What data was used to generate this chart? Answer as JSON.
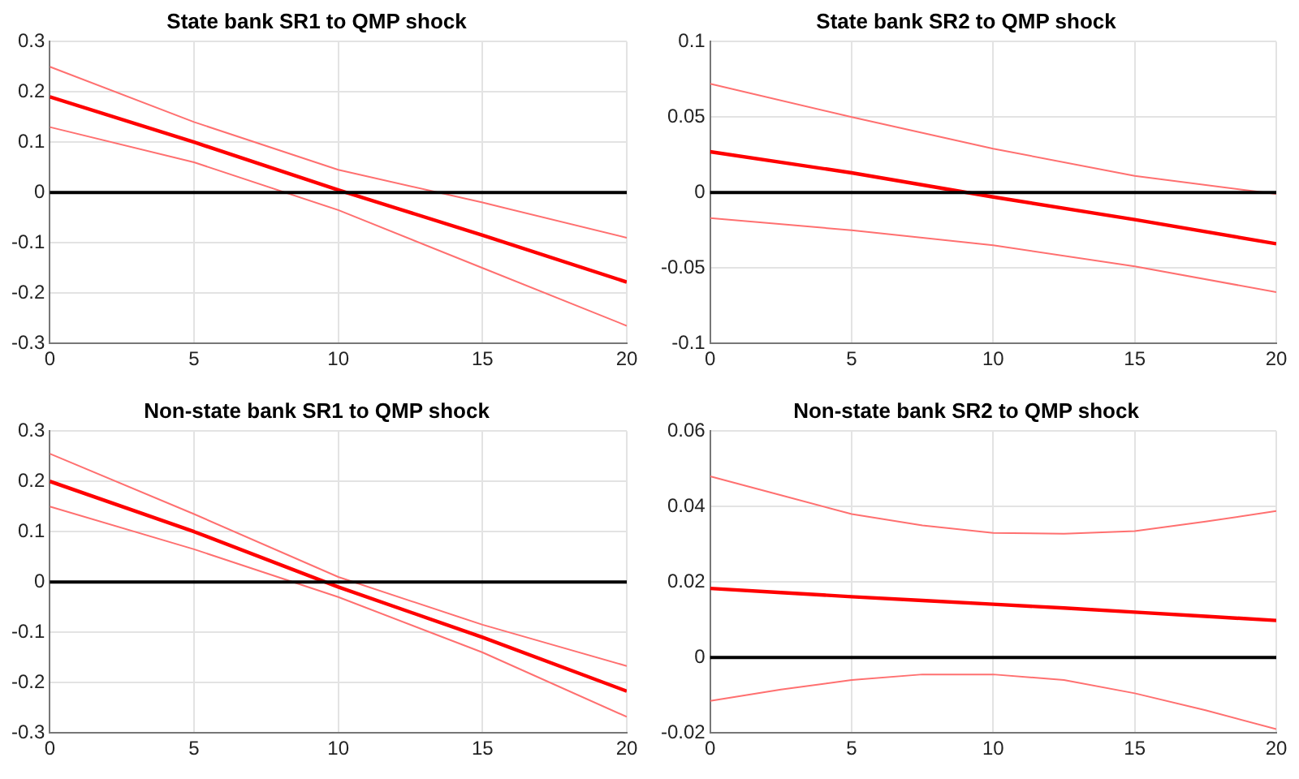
{
  "chart_data": [
    {
      "type": "line",
      "title": "State bank SR1 to QMP shock",
      "x": [
        0,
        5,
        10,
        15,
        20
      ],
      "xlim": [
        0,
        20
      ],
      "xticks": [
        0,
        5,
        10,
        15,
        20
      ],
      "ylim": [
        -0.3,
        0.3
      ],
      "yticks": [
        -0.3,
        -0.2,
        -0.1,
        0,
        0.1,
        0.2,
        0.3
      ],
      "grid": true,
      "legend": false,
      "marker": "none",
      "line_style": "solid",
      "ref_lines": [
        {
          "axis": "y",
          "value": 0,
          "color": "#000000"
        }
      ],
      "series": [
        {
          "color": "#ff0000",
          "values": [
            0.19,
            0.1,
            0.005,
            -0.085,
            -0.178
          ]
        },
        {
          "color": "#ff7070",
          "values": [
            0.25,
            0.14,
            0.045,
            -0.02,
            -0.09
          ]
        },
        {
          "color": "#ff7070",
          "values": [
            0.13,
            0.06,
            -0.035,
            -0.15,
            -0.265
          ]
        }
      ]
    },
    {
      "type": "line",
      "title": "State bank SR2 to QMP shock",
      "x": [
        0,
        5,
        10,
        15,
        20
      ],
      "xlim": [
        0,
        20
      ],
      "xticks": [
        0,
        5,
        10,
        15,
        20
      ],
      "ylim": [
        -0.1,
        0.1
      ],
      "yticks": [
        -0.1,
        -0.05,
        0,
        0.05,
        0.1
      ],
      "grid": true,
      "legend": false,
      "marker": "none",
      "line_style": "solid",
      "ref_lines": [
        {
          "axis": "y",
          "value": 0,
          "color": "#000000"
        }
      ],
      "series": [
        {
          "color": "#ff0000",
          "values": [
            0.027,
            0.013,
            -0.003,
            -0.018,
            -0.034
          ]
        },
        {
          "color": "#ff7070",
          "values": [
            0.072,
            0.05,
            0.029,
            0.011,
            -0.001
          ]
        },
        {
          "color": "#ff7070",
          "values": [
            -0.017,
            -0.025,
            -0.035,
            -0.049,
            -0.066
          ]
        }
      ]
    },
    {
      "type": "line",
      "title": "Non-state bank SR1 to QMP shock",
      "x": [
        0,
        5,
        10,
        15,
        20
      ],
      "xlim": [
        0,
        20
      ],
      "xticks": [
        0,
        5,
        10,
        15,
        20
      ],
      "ylim": [
        -0.3,
        0.3
      ],
      "yticks": [
        -0.3,
        -0.2,
        -0.1,
        0,
        0.1,
        0.2,
        0.3
      ],
      "grid": true,
      "legend": false,
      "marker": "none",
      "line_style": "solid",
      "ref_lines": [
        {
          "axis": "y",
          "value": 0,
          "color": "#000000"
        }
      ],
      "series": [
        {
          "color": "#ff0000",
          "values": [
            0.2,
            0.1,
            -0.01,
            -0.11,
            -0.217
          ]
        },
        {
          "color": "#ff7070",
          "values": [
            0.255,
            0.135,
            0.01,
            -0.085,
            -0.167
          ]
        },
        {
          "color": "#ff7070",
          "values": [
            0.15,
            0.065,
            -0.03,
            -0.14,
            -0.268
          ]
        }
      ]
    },
    {
      "type": "line",
      "title": "Non-state bank SR2 to QMP shock",
      "x": [
        0,
        2.5,
        5,
        7.5,
        10,
        12.5,
        15,
        17.5,
        20
      ],
      "xlim": [
        0,
        20
      ],
      "xticks": [
        0,
        5,
        10,
        15,
        20
      ],
      "ylim": [
        -0.02,
        0.06
      ],
      "yticks": [
        -0.02,
        0,
        0.02,
        0.04,
        0.06
      ],
      "grid": true,
      "legend": false,
      "marker": "none",
      "line_style": "solid",
      "ref_lines": [
        {
          "axis": "y",
          "value": 0,
          "color": "#000000"
        }
      ],
      "series": [
        {
          "color": "#ff0000",
          "values": [
            0.0183,
            0.0172,
            0.0161,
            0.0151,
            0.0141,
            0.0131,
            0.012,
            0.0109,
            0.0098
          ]
        },
        {
          "color": "#ff7070",
          "values": [
            0.048,
            0.043,
            0.038,
            0.035,
            0.033,
            0.0328,
            0.0335,
            0.036,
            0.0388
          ]
        },
        {
          "color": "#ff7070",
          "values": [
            -0.0115,
            -0.0085,
            -0.006,
            -0.0045,
            -0.0045,
            -0.006,
            -0.0095,
            -0.014,
            -0.019
          ]
        }
      ]
    }
  ]
}
